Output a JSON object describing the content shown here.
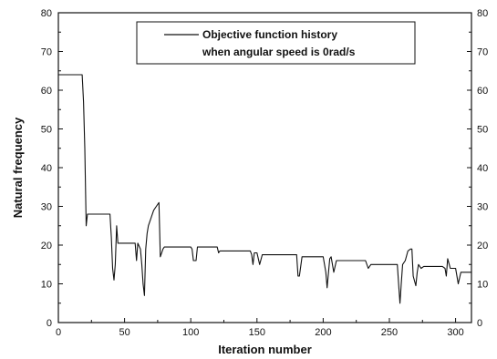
{
  "chart_data": {
    "type": "line",
    "title": "",
    "xlabel": "Iteration number",
    "ylabel": "Natural frequency",
    "xlim": [
      0,
      312
    ],
    "ylim": [
      0,
      80
    ],
    "x_ticks": [
      0,
      50,
      100,
      150,
      200,
      250,
      300
    ],
    "y_ticks": [
      0,
      10,
      20,
      30,
      40,
      50,
      60,
      70,
      80
    ],
    "right_y_ticks": [
      0,
      10,
      20,
      30,
      40,
      50,
      60,
      70,
      80
    ],
    "grid": false,
    "legend_position": "top-center",
    "legend_lines": [
      "Objective function history",
      "when angular speed is 0rad/s"
    ],
    "series": [
      {
        "name": "Objective function history when angular speed is 0rad/s",
        "color": "#111111",
        "x": [
          0,
          18,
          19,
          20,
          21,
          22,
          23,
          39,
          40,
          41,
          42,
          43,
          44,
          45,
          46,
          47,
          58,
          59,
          60,
          62,
          63,
          64,
          65,
          66,
          67,
          68,
          70,
          72,
          74,
          76,
          77,
          78,
          79,
          80,
          81,
          100,
          101,
          102,
          104,
          105,
          106,
          120,
          121,
          122,
          145,
          146,
          147,
          148,
          150,
          152,
          154,
          156,
          158,
          170,
          180,
          181,
          182,
          184,
          185,
          190,
          200,
          202,
          203,
          205,
          206,
          208,
          210,
          212,
          214,
          230,
          232,
          234,
          236,
          255,
          256,
          257,
          258,
          259,
          260,
          262,
          264,
          266,
          267,
          268,
          270,
          271,
          272,
          274,
          276,
          290,
          292,
          293,
          294,
          296,
          300,
          302,
          304,
          306,
          310,
          312
        ],
        "y": [
          64,
          64,
          57,
          45,
          25,
          28,
          28,
          28,
          22,
          14,
          11,
          15,
          25,
          20.5,
          20.5,
          20.5,
          20.5,
          16,
          20.5,
          19,
          15,
          10,
          7,
          19,
          23,
          25,
          27,
          29,
          30,
          31,
          17,
          18,
          19,
          19.5,
          19.5,
          19.5,
          19,
          16,
          16,
          19.5,
          19.5,
          19.5,
          18,
          18.5,
          18.5,
          17.5,
          15,
          18,
          18,
          15,
          17.5,
          17.5,
          17.5,
          17.5,
          17.5,
          12,
          12,
          17,
          17,
          17,
          17,
          13,
          9,
          16.5,
          17,
          13,
          16,
          16,
          16,
          16,
          16,
          14,
          15,
          15,
          15,
          10,
          5,
          10,
          15,
          16,
          18.5,
          19,
          19,
          12,
          9.5,
          13,
          15,
          14,
          14.5,
          14.5,
          14,
          12,
          16.5,
          14,
          14,
          10,
          13,
          13,
          13,
          13
        ]
      }
    ]
  }
}
